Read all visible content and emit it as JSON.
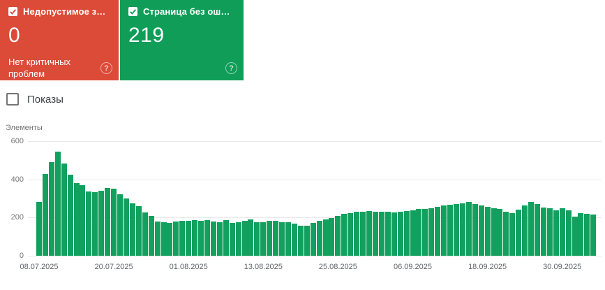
{
  "icons": {
    "help": "?"
  },
  "cards": {
    "errors": {
      "title": "Недопустимое з…",
      "value": "0",
      "subtitle": "Нет критичных проблем",
      "color": "#dc4a38",
      "checked": true
    },
    "valid": {
      "title": "Страница без ош…",
      "value": "219",
      "subtitle": "",
      "color": "#0f9d58",
      "checked": true
    }
  },
  "filters": {
    "impressions_label": "Показы",
    "impressions_checked": false
  },
  "chart_data": {
    "type": "bar",
    "title": "Элементы",
    "ylabel": "Элементы",
    "xlabel": "",
    "bar_color": "#12a05e",
    "grid": true,
    "legend_position": "none",
    "ylim": [
      0,
      600
    ],
    "yticks": [
      0,
      200,
      400,
      600
    ],
    "frequency": "daily",
    "start_date": "08.07.2025",
    "end_date": "05.10.2025",
    "x_tick_labels": [
      "08.07.2025",
      "20.07.2025",
      "01.08.2025",
      "13.08.2025",
      "25.08.2025",
      "06.09.2025",
      "18.09.2025",
      "30.09.2025"
    ],
    "x_tick_indices": [
      0,
      12,
      24,
      36,
      48,
      60,
      72,
      84
    ],
    "values": [
      280,
      428,
      490,
      545,
      483,
      424,
      381,
      368,
      336,
      333,
      341,
      355,
      350,
      322,
      299,
      276,
      259,
      226,
      210,
      180,
      174,
      171,
      180,
      183,
      183,
      185,
      183,
      185,
      180,
      177,
      185,
      173,
      175,
      182,
      191,
      175,
      177,
      182,
      182,
      177,
      177,
      168,
      159,
      157,
      171,
      182,
      190,
      196,
      207,
      218,
      224,
      229,
      232,
      234,
      232,
      229,
      229,
      228,
      232,
      234,
      238,
      244,
      246,
      250,
      256,
      262,
      266,
      271,
      276,
      280,
      272,
      262,
      255,
      250,
      245,
      230,
      222,
      240,
      265,
      283,
      270,
      252,
      250,
      236,
      247,
      236,
      206,
      222,
      218,
      217
    ]
  }
}
